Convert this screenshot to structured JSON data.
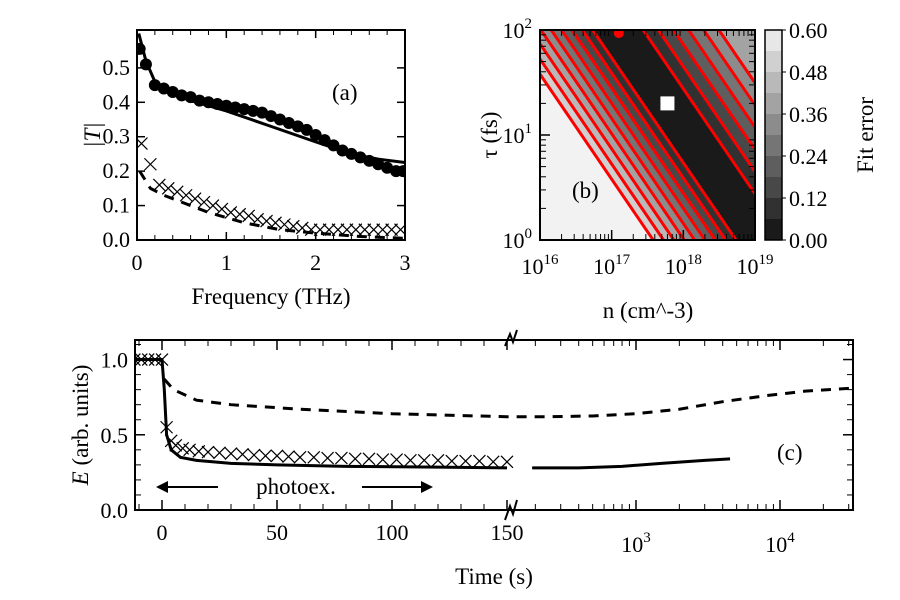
{
  "chart_data": [
    {
      "panel": "(a)",
      "type": "line",
      "xlabel": "Frequency (THz)",
      "ylabel": "|T|",
      "xlim": [
        0,
        3
      ],
      "ylim": [
        0,
        0.61
      ],
      "xticks": [
        "0",
        "1",
        "2",
        "3"
      ],
      "yticks": [
        "0.0",
        "0.1",
        "0.2",
        "0.3",
        "0.4",
        "0.5"
      ],
      "series": [
        {
          "style": "circles",
          "points": [
            [
              0.03,
              0.555
            ],
            [
              0.1,
              0.51
            ],
            [
              0.2,
              0.45
            ],
            [
              0.3,
              0.44
            ],
            [
              0.4,
              0.43
            ],
            [
              0.5,
              0.42
            ],
            [
              0.6,
              0.415
            ],
            [
              0.7,
              0.405
            ],
            [
              0.8,
              0.4
            ],
            [
              0.9,
              0.395
            ],
            [
              1.0,
              0.39
            ],
            [
              1.1,
              0.385
            ],
            [
              1.2,
              0.38
            ],
            [
              1.3,
              0.375
            ],
            [
              1.4,
              0.37
            ],
            [
              1.5,
              0.36
            ],
            [
              1.6,
              0.35
            ],
            [
              1.7,
              0.34
            ],
            [
              1.8,
              0.33
            ],
            [
              1.9,
              0.32
            ],
            [
              2.0,
              0.305
            ],
            [
              2.1,
              0.29
            ],
            [
              2.2,
              0.275
            ],
            [
              2.3,
              0.26
            ],
            [
              2.4,
              0.25
            ],
            [
              2.5,
              0.24
            ],
            [
              2.6,
              0.23
            ],
            [
              2.7,
              0.22
            ],
            [
              2.8,
              0.21
            ],
            [
              2.9,
              0.2
            ],
            [
              2.98,
              0.2
            ]
          ]
        },
        {
          "style": "solid",
          "points": [
            [
              0.02,
              0.6
            ],
            [
              0.1,
              0.52
            ],
            [
              0.2,
              0.46
            ],
            [
              0.35,
              0.43
            ],
            [
              0.6,
              0.405
            ],
            [
              1.0,
              0.375
            ],
            [
              1.5,
              0.33
            ],
            [
              2.0,
              0.285
            ],
            [
              2.4,
              0.25
            ],
            [
              2.7,
              0.235
            ],
            [
              3.0,
              0.225
            ]
          ]
        },
        {
          "style": "crosses",
          "points": [
            [
              0.05,
              0.28
            ],
            [
              0.15,
              0.22
            ],
            [
              0.25,
              0.16
            ],
            [
              0.35,
              0.15
            ],
            [
              0.45,
              0.14
            ],
            [
              0.55,
              0.13
            ],
            [
              0.65,
              0.12
            ],
            [
              0.75,
              0.11
            ],
            [
              0.85,
              0.1
            ],
            [
              0.95,
              0.09
            ],
            [
              1.05,
              0.08
            ],
            [
              1.15,
              0.075
            ],
            [
              1.25,
              0.07
            ],
            [
              1.35,
              0.06
            ],
            [
              1.45,
              0.055
            ],
            [
              1.55,
              0.05
            ],
            [
              1.65,
              0.045
            ],
            [
              1.75,
              0.04
            ],
            [
              1.85,
              0.035
            ],
            [
              1.95,
              0.03
            ],
            [
              2.05,
              0.03
            ],
            [
              2.15,
              0.03
            ],
            [
              2.25,
              0.03
            ],
            [
              2.35,
              0.03
            ],
            [
              2.45,
              0.03
            ],
            [
              2.55,
              0.03
            ],
            [
              2.65,
              0.03
            ],
            [
              2.75,
              0.03
            ],
            [
              2.85,
              0.03
            ],
            [
              2.95,
              0.03
            ]
          ]
        },
        {
          "style": "dashed",
          "points": [
            [
              0.03,
              0.2
            ],
            [
              0.15,
              0.15
            ],
            [
              0.3,
              0.13
            ],
            [
              0.5,
              0.11
            ],
            [
              0.8,
              0.08
            ],
            [
              1.2,
              0.05
            ],
            [
              1.6,
              0.03
            ],
            [
              2.0,
              0.02
            ],
            [
              2.5,
              0.01
            ],
            [
              3.0,
              0.005
            ]
          ]
        }
      ]
    },
    {
      "panel": "(b)",
      "type": "heatmap",
      "xlabel": "n (cm^-3)",
      "ylabel": "τ (fs)",
      "xscale": "log",
      "yscale": "log",
      "xlim_log10": [
        16,
        19
      ],
      "ylim_log10": [
        0,
        2
      ],
      "xticks": [
        {
          "base": "10",
          "exp": "16"
        },
        {
          "base": "10",
          "exp": "17"
        },
        {
          "base": "10",
          "exp": "18"
        },
        {
          "base": "10",
          "exp": "19"
        }
      ],
      "yticks": [
        {
          "base": "10",
          "exp": "0"
        },
        {
          "base": "10",
          "exp": "1"
        },
        {
          "base": "10",
          "exp": "2"
        }
      ],
      "colorbar_label": "Fit error",
      "colorbar_ticks": [
        "0.00",
        "0.12",
        "0.24",
        "0.36",
        "0.48",
        "0.60"
      ],
      "colorbar_range": [
        0,
        0.6
      ],
      "contour_color": "#ff0000",
      "best_fit": {
        "n": 6e+17,
        "tau_fs": 20
      },
      "contour_levels": [
        0.54,
        0.48,
        0.42,
        0.36,
        0.3,
        0.24,
        0.18,
        0.12,
        0.06
      ]
    },
    {
      "panel": "(c)",
      "type": "line",
      "xlabel": "Time (s)",
      "ylabel": "E (arb. units)",
      "xaxis": "broken: linear 0–150, then log",
      "xlim": [
        -12,
        32000
      ],
      "ylim": [
        0,
        1.13
      ],
      "xticks": [
        "0",
        "50",
        "100",
        "150"
      ],
      "xticks_log": [
        {
          "base": "10",
          "exp": "3"
        },
        {
          "base": "10",
          "exp": "4"
        }
      ],
      "yticks": [
        "0.0",
        "0.5",
        "1.0"
      ],
      "annotation": "photoex.",
      "photoexcitation_range_s": [
        0,
        120
      ],
      "series": [
        {
          "style": "solid",
          "points": [
            [
              -12,
              1.0
            ],
            [
              0,
              1.0
            ],
            [
              1,
              0.8
            ],
            [
              2,
              0.5
            ],
            [
              4,
              0.4
            ],
            [
              8,
              0.35
            ],
            [
              15,
              0.33
            ],
            [
              30,
              0.31
            ],
            [
              50,
              0.3
            ],
            [
              80,
              0.29
            ],
            [
              120,
              0.285
            ],
            [
              150,
              0.28
            ]
          ]
        },
        {
          "style": "solid",
          "points": [
            [
              190,
              0.28
            ],
            [
              400,
              0.28
            ],
            [
              800,
              0.29
            ],
            [
              1500,
              0.31
            ],
            [
              3000,
              0.33
            ],
            [
              4500,
              0.34
            ]
          ]
        },
        {
          "style": "crosses",
          "points": [
            [
              -12,
              1.0
            ],
            [
              -9,
              1.0
            ],
            [
              -6,
              1.0
            ],
            [
              -3,
              1.0
            ],
            [
              0,
              1.0
            ],
            [
              2,
              0.55
            ],
            [
              4,
              0.46
            ],
            [
              6,
              0.43
            ],
            [
              9,
              0.41
            ],
            [
              12,
              0.4
            ],
            [
              16,
              0.39
            ],
            [
              20,
              0.385
            ],
            [
              25,
              0.38
            ],
            [
              30,
              0.375
            ],
            [
              35,
              0.37
            ],
            [
              40,
              0.365
            ],
            [
              45,
              0.36
            ],
            [
              50,
              0.36
            ],
            [
              55,
              0.355
            ],
            [
              60,
              0.35
            ],
            [
              66,
              0.35
            ],
            [
              72,
              0.345
            ],
            [
              78,
              0.345
            ],
            [
              84,
              0.34
            ],
            [
              90,
              0.34
            ],
            [
              96,
              0.335
            ],
            [
              102,
              0.335
            ],
            [
              108,
              0.33
            ],
            [
              114,
              0.33
            ],
            [
              120,
              0.33
            ],
            [
              126,
              0.325
            ],
            [
              132,
              0.325
            ],
            [
              138,
              0.325
            ],
            [
              144,
              0.32
            ],
            [
              150,
              0.32
            ]
          ]
        },
        {
          "style": "dashed",
          "points": [
            [
              1,
              0.87
            ],
            [
              5,
              0.8
            ],
            [
              15,
              0.73
            ],
            [
              30,
              0.7
            ],
            [
              60,
              0.67
            ],
            [
              100,
              0.64
            ],
            [
              150,
              0.62
            ],
            [
              250,
              0.62
            ],
            [
              500,
              0.625
            ],
            [
              1000,
              0.64
            ],
            [
              2000,
              0.67
            ],
            [
              4000,
              0.72
            ],
            [
              8000,
              0.76
            ],
            [
              15000,
              0.79
            ],
            [
              32000,
              0.81
            ]
          ]
        }
      ]
    }
  ]
}
